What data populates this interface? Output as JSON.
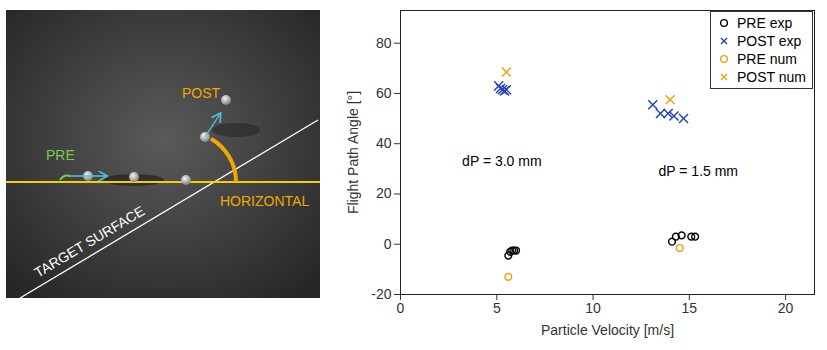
{
  "photo_annotations": {
    "pre": "PRE",
    "post": "POST",
    "horizontal": "HORIZONTAL",
    "target_surface": "TARGET SURFACE"
  },
  "chart_data": {
    "type": "scatter",
    "x_label": "Particle Velocity [m/s]",
    "y_label": "Flight Path Angle [°]",
    "xlim": [
      0,
      21.5
    ],
    "ylim": [
      -20,
      93
    ],
    "xticks": [
      0,
      5,
      10,
      15,
      20
    ],
    "yticks": [
      -20,
      0,
      20,
      40,
      60,
      80
    ],
    "grid": false,
    "legend": "top-right",
    "annotations": [
      {
        "text": "dP = 3.0 mm",
        "x": 3.2,
        "y": 33
      },
      {
        "text": "dP = 1.5 mm",
        "x": 13.4,
        "y": 29
      }
    ],
    "series": [
      {
        "name": "PRE exp",
        "color": "#000000",
        "marker": "circle",
        "x": [
          5.6,
          5.7,
          5.8,
          5.9,
          6.0,
          14.1,
          14.3,
          14.6,
          15.1,
          15.3
        ],
        "values": [
          -4.5,
          -3,
          -2.5,
          -2.5,
          -2.5,
          1,
          3,
          3.5,
          3,
          3
        ]
      },
      {
        "name": "POST exp",
        "color": "#1f3fbf",
        "marker": "x",
        "x": [
          5.1,
          5.2,
          5.3,
          5.4,
          5.5,
          13.1,
          13.5,
          13.9,
          14.2,
          14.7
        ],
        "values": [
          63,
          62,
          61.5,
          61,
          61.5,
          55.5,
          52,
          52,
          51,
          50
        ]
      },
      {
        "name": "PRE num",
        "color": "#f0a000",
        "marker": "circle",
        "x": [
          5.6,
          14.5
        ],
        "values": [
          -13,
          -1.5
        ]
      },
      {
        "name": "POST num",
        "color": "#f0a000",
        "marker": "x",
        "x": [
          5.5,
          14.0
        ],
        "values": [
          68.5,
          57.5
        ]
      }
    ]
  }
}
